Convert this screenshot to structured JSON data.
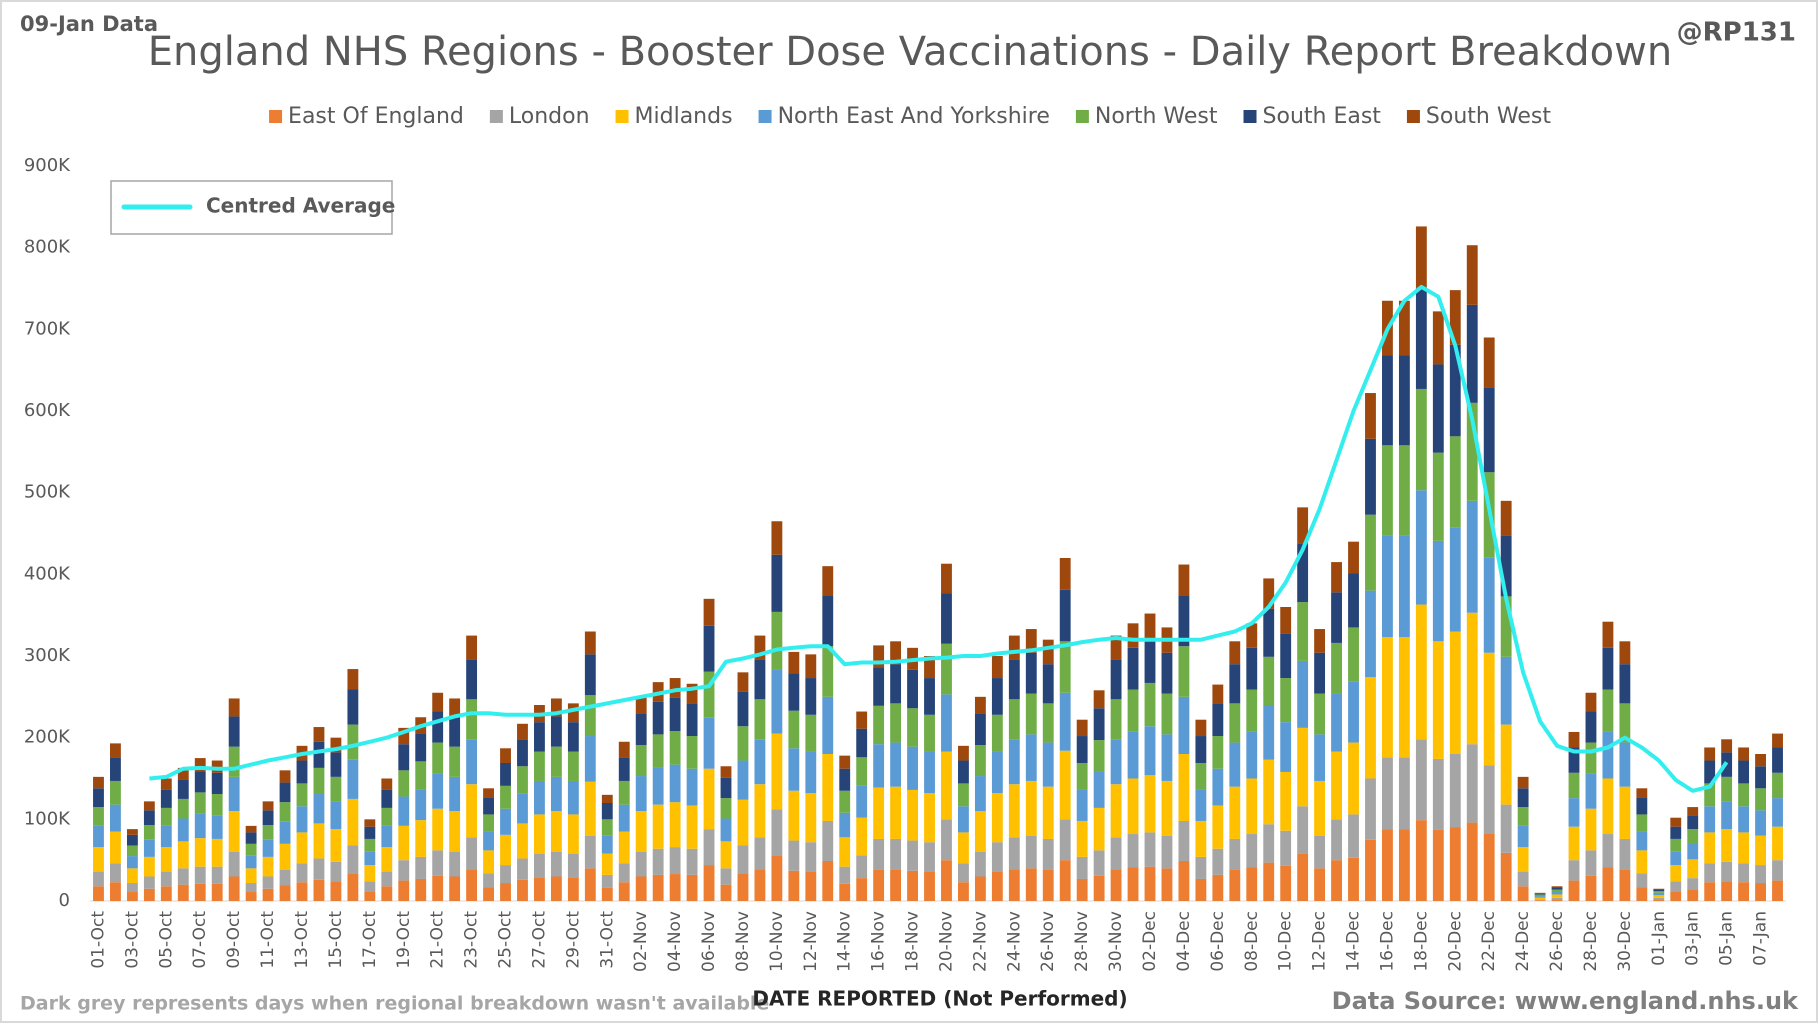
{
  "chart_data": {
    "type": "stacked_bar",
    "title": "England NHS Regions - Booster Dose Vaccinations - Daily Report Breakdown",
    "data_date": "09-Jan Data",
    "author": "@RP131",
    "footnote": "Dark grey represents days when regional breakdown wasn't available",
    "x_label": "DATE REPORTED (Not Performed)",
    "source": "Data Source: www.england.nhs.uk",
    "legend": "top",
    "grid": false,
    "ylim": [
      0,
      900000
    ],
    "yticks": [
      0,
      {
        "value": 100000,
        "label": "100K"
      },
      {
        "value": 200000,
        "label": "200K"
      },
      {
        "value": 300000,
        "label": "300K"
      },
      {
        "value": 400000,
        "label": "400K"
      },
      {
        "value": 500000,
        "label": "500K"
      },
      {
        "value": 600000,
        "label": "600K"
      },
      {
        "value": 700000,
        "label": "700K"
      },
      {
        "value": 800000,
        "label": "800K"
      },
      {
        "value": 900000,
        "label": "900K"
      }
    ],
    "categories": [
      "01-Oct",
      null,
      "03-Oct",
      null,
      "05-Oct",
      null,
      "07-Oct",
      null,
      "09-Oct",
      null,
      "11-Oct",
      null,
      "13-Oct",
      null,
      "15-Oct",
      null,
      "17-Oct",
      null,
      "19-Oct",
      null,
      "21-Oct",
      null,
      "23-Oct",
      null,
      "25-Oct",
      null,
      "27-Oct",
      null,
      "29-Oct",
      null,
      "31-Oct",
      null,
      "02-Nov",
      null,
      "04-Nov",
      null,
      "06-Nov",
      null,
      "08-Nov",
      null,
      "10-Nov",
      null,
      "12-Nov",
      null,
      "14-Nov",
      null,
      "16-Nov",
      null,
      "18-Nov",
      null,
      "20-Nov",
      null,
      "22-Nov",
      null,
      "24-Nov",
      null,
      "26-Nov",
      null,
      "28-Nov",
      null,
      "30-Nov",
      null,
      "02-Dec",
      null,
      "04-Dec",
      null,
      "06-Dec",
      null,
      "08-Dec",
      null,
      "10-Dec",
      null,
      "12-Dec",
      null,
      "14-Dec",
      null,
      "16-Dec",
      null,
      "18-Dec",
      null,
      "20-Dec",
      null,
      "22-Dec",
      null,
      "24-Dec",
      null,
      "26-Dec",
      null,
      "28-Dec",
      null,
      "30-Dec",
      null,
      "01-Jan",
      null,
      "03-Jan",
      null,
      "05-Jan",
      null,
      "07-Jan",
      null
    ],
    "series": [
      {
        "name": "East Of England",
        "color": "#ed7d31",
        "values": [
          18000,
          23000,
          11000,
          15000,
          18000,
          20000,
          21000,
          21000,
          30000,
          11000,
          15000,
          19000,
          23000,
          26000,
          24000,
          34000,
          12000,
          18000,
          25000,
          27000,
          31000,
          30000,
          39000,
          17000,
          22000,
          26000,
          29000,
          30000,
          29000,
          40000,
          16000,
          23000,
          30000,
          32000,
          33000,
          32000,
          44000,
          20000,
          34000,
          39000,
          56000,
          37000,
          36000,
          49000,
          21000,
          28000,
          38000,
          38000,
          37000,
          36000,
          50000,
          23000,
          30000,
          36000,
          39000,
          40000,
          38000,
          50000,
          27000,
          31000,
          39000,
          41000,
          42000,
          40000,
          49000,
          27000,
          32000,
          38000,
          41000,
          47000,
          43000,
          58000,
          40000,
          50000,
          53000,
          75000,
          88000,
          88000,
          99000,
          87000,
          90000,
          96000,
          83000,
          59000,
          18000,
          1000,
          2000,
          25000,
          31000,
          41000,
          38000,
          17000,
          2000,
          12000,
          14000,
          23000,
          24000,
          23000,
          22000,
          25000
        ]
      },
      {
        "name": "London",
        "color": "#a5a5a5",
        "values": [
          18000,
          23000,
          11000,
          15000,
          18000,
          20000,
          21000,
          21000,
          30000,
          11000,
          15000,
          19000,
          23000,
          26000,
          24000,
          34000,
          12000,
          18000,
          25000,
          27000,
          31000,
          30000,
          39000,
          17000,
          22000,
          26000,
          29000,
          30000,
          29000,
          40000,
          16000,
          23000,
          30000,
          32000,
          33000,
          32000,
          44000,
          20000,
          34000,
          39000,
          56000,
          37000,
          36000,
          49000,
          21000,
          28000,
          38000,
          38000,
          37000,
          36000,
          50000,
          23000,
          30000,
          36000,
          39000,
          40000,
          38000,
          50000,
          27000,
          31000,
          39000,
          41000,
          42000,
          40000,
          49000,
          27000,
          32000,
          38000,
          41000,
          47000,
          43000,
          58000,
          40000,
          50000,
          53000,
          75000,
          88000,
          88000,
          99000,
          87000,
          90000,
          96000,
          83000,
          59000,
          18000,
          1000,
          2000,
          25000,
          31000,
          41000,
          38000,
          17000,
          2000,
          12000,
          14000,
          23000,
          24000,
          23000,
          22000,
          25000
        ]
      },
      {
        "name": "Midlands",
        "color": "#ffc000",
        "values": [
          30000,
          39000,
          18000,
          24000,
          30000,
          33000,
          35000,
          34000,
          50000,
          18000,
          24000,
          32000,
          38000,
          43000,
          40000,
          57000,
          20000,
          30000,
          42000,
          45000,
          51000,
          50000,
          65000,
          28000,
          37000,
          43000,
          48000,
          50000,
          48000,
          66000,
          26000,
          39000,
          50000,
          54000,
          55000,
          53000,
          74000,
          33000,
          56000,
          65000,
          93000,
          61000,
          60000,
          82000,
          36000,
          46000,
          63000,
          64000,
          62000,
          60000,
          83000,
          38000,
          50000,
          60000,
          65000,
          67000,
          64000,
          84000,
          44000,
          52000,
          65000,
          68000,
          70000,
          67000,
          82000,
          44000,
          53000,
          64000,
          68000,
          79000,
          72000,
          96000,
          67000,
          83000,
          88000,
          124000,
          147000,
          147000,
          165000,
          144000,
          150000,
          161000,
          138000,
          98000,
          30000,
          2000,
          4000,
          41000,
          51000,
          68000,
          64000,
          28000,
          3000,
          20000,
          23000,
          38000,
          40000,
          38000,
          36000,
          41000
        ]
      },
      {
        "name": "North East And Yorkshire",
        "color": "#5b9bd5",
        "values": [
          26000,
          33000,
          15000,
          21000,
          26000,
          28000,
          30000,
          29000,
          42000,
          16000,
          21000,
          27000,
          32000,
          36000,
          34000,
          48000,
          17000,
          26000,
          36000,
          38000,
          43000,
          42000,
          55000,
          23000,
          32000,
          37000,
          41000,
          42000,
          41000,
          56000,
          22000,
          33000,
          43000,
          46000,
          46000,
          45000,
          63000,
          28000,
          48000,
          55000,
          79000,
          52000,
          51000,
          70000,
          30000,
          39000,
          53000,
          54000,
          53000,
          51000,
          70000,
          32000,
          43000,
          51000,
          55000,
          57000,
          54000,
          71000,
          38000,
          44000,
          55000,
          58000,
          60000,
          57000,
          70000,
          38000,
          45000,
          54000,
          58000,
          67000,
          61000,
          82000,
          57000,
          71000,
          75000,
          106000,
          125000,
          125000,
          140000,
          123000,
          127000,
          137000,
          117000,
          83000,
          26000,
          2000,
          3000,
          35000,
          43000,
          58000,
          54000,
          23000,
          3000,
          17000,
          20000,
          32000,
          34000,
          32000,
          31000,
          35000
        ]
      },
      {
        "name": "North West",
        "color": "#70ad47",
        "values": [
          23000,
          29000,
          13000,
          18000,
          22000,
          24000,
          26000,
          26000,
          37000,
          14000,
          18000,
          24000,
          28000,
          32000,
          30000,
          43000,
          15000,
          22000,
          32000,
          34000,
          38000,
          37000,
          49000,
          21000,
          28000,
          33000,
          36000,
          37000,
          36000,
          50000,
          20000,
          29000,
          38000,
          40000,
          41000,
          40000,
          56000,
          25000,
          42000,
          49000,
          70000,
          46000,
          45000,
          62000,
          27000,
          35000,
          47000,
          48000,
          47000,
          45000,
          62000,
          28000,
          38000,
          45000,
          49000,
          50000,
          48000,
          63000,
          33000,
          39000,
          49000,
          51000,
          53000,
          50000,
          62000,
          33000,
          40000,
          48000,
          51000,
          59000,
          54000,
          72000,
          50000,
          62000,
          66000,
          93000,
          110000,
          110000,
          124000,
          108000,
          112000,
          120000,
          104000,
          74000,
          23000,
          2000,
          3000,
          31000,
          38000,
          51000,
          48000,
          21000,
          2000,
          15000,
          17000,
          28000,
          30000,
          28000,
          27000,
          31000
        ]
      },
      {
        "name": "South East",
        "color": "#264478",
        "values": [
          23000,
          29000,
          13000,
          18000,
          22000,
          24000,
          26000,
          26000,
          37000,
          14000,
          18000,
          24000,
          28000,
          32000,
          30000,
          43000,
          15000,
          22000,
          32000,
          34000,
          38000,
          37000,
          49000,
          21000,
          28000,
          33000,
          36000,
          37000,
          36000,
          50000,
          20000,
          29000,
          38000,
          40000,
          41000,
          40000,
          56000,
          25000,
          42000,
          49000,
          70000,
          46000,
          45000,
          62000,
          27000,
          35000,
          47000,
          48000,
          47000,
          45000,
          62000,
          28000,
          38000,
          45000,
          49000,
          50000,
          48000,
          63000,
          33000,
          39000,
          49000,
          51000,
          53000,
          50000,
          62000,
          33000,
          40000,
          48000,
          51000,
          59000,
          54000,
          72000,
          50000,
          62000,
          66000,
          93000,
          110000,
          110000,
          124000,
          108000,
          112000,
          120000,
          104000,
          74000,
          23000,
          1000,
          3000,
          31000,
          38000,
          51000,
          48000,
          21000,
          2000,
          15000,
          17000,
          28000,
          30000,
          28000,
          27000,
          31000
        ]
      },
      {
        "name": "South West",
        "color": "#9e480e",
        "values": [
          14000,
          17000,
          7000,
          11000,
          14000,
          14000,
          16000,
          15000,
          22000,
          8000,
          11000,
          15000,
          18000,
          18000,
          18000,
          25000,
          9000,
          14000,
          20000,
          20000,
          23000,
          22000,
          29000,
          11000,
          18000,
          19000,
          21000,
          22000,
          23000,
          28000,
          10000,
          19000,
          21000,
          24000,
          24000,
          24000,
          33000,
          14000,
          24000,
          29000,
          41000,
          26000,
          29000,
          36000,
          16000,
          21000,
          27000,
          28000,
          27000,
          27000,
          36000,
          18000,
          21000,
          27000,
          29000,
          29000,
          30000,
          39000,
          20000,
          22000,
          29000,
          30000,
          32000,
          31000,
          38000,
          20000,
          23000,
          28000,
          30000,
          37000,
          33000,
          44000,
          29000,
          37000,
          39000,
          56000,
          67000,
          67000,
          75000,
          65000,
          67000,
          73000,
          61000,
          43000,
          14000,
          1000,
          1000,
          19000,
          23000,
          32000,
          28000,
          11000,
          1000,
          11000,
          10000,
          16000,
          16000,
          16000,
          15000,
          17000
        ]
      }
    ],
    "average": {
      "name": "Centred Average",
      "color": "#33eeee",
      "values": [
        null,
        null,
        null,
        150000,
        152000,
        162000,
        163000,
        162000,
        162000,
        167000,
        172000,
        176000,
        180000,
        183000,
        186000,
        190000,
        195000,
        200000,
        207000,
        214000,
        220000,
        226000,
        230000,
        230000,
        228000,
        228000,
        228000,
        230000,
        234000,
        238000,
        242000,
        246000,
        250000,
        254000,
        258000,
        260000,
        263000,
        293000,
        297000,
        302000,
        308000,
        310000,
        312000,
        312000,
        290000,
        292000,
        292000,
        293000,
        295000,
        297000,
        298000,
        300000,
        300000,
        303000,
        305000,
        307000,
        310000,
        313000,
        317000,
        320000,
        322000,
        320000,
        320000,
        320000,
        320000,
        320000,
        325000,
        330000,
        340000,
        360000,
        390000,
        430000,
        480000,
        540000,
        600000,
        650000,
        700000,
        735000,
        752000,
        740000,
        680000,
        590000,
        480000,
        370000,
        280000,
        220000,
        190000,
        183000,
        183000,
        188000,
        200000,
        188000,
        172000,
        148000,
        135000,
        140000,
        170000,
        null,
        null,
        null
      ]
    }
  }
}
